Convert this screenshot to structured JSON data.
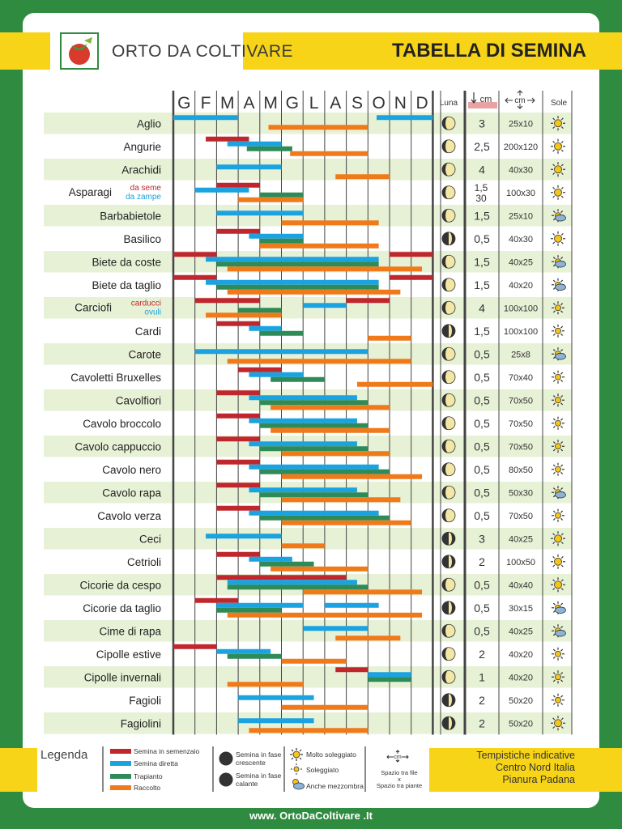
{
  "header": {
    "brand": "ORTO DA COLTIVARE",
    "title": "TABELLA DI SEMINA"
  },
  "columns": {
    "months": [
      "G",
      "F",
      "M",
      "A",
      "M",
      "G",
      "L",
      "A",
      "S",
      "O",
      "N",
      "D"
    ],
    "moon": "Luna",
    "depth": "cm",
    "spacing": "cm",
    "sun": "Sole"
  },
  "colors": {
    "semenzaio": "#c0272d",
    "diretta": "#1aa3e0",
    "trapianto": "#2e8b57",
    "raccolto": "#f07a1a"
  },
  "rows": [
    {
      "name": "Aglio",
      "moon": "calante",
      "depth": "3",
      "spacing": "25x10",
      "sun": "molto",
      "bars": [
        {
          "t": "diretta",
          "r": [
            [
              0,
              3
            ],
            [
              9.4,
              12
            ]
          ]
        }
      ],
      "bars2": [
        {
          "t": "raccolto",
          "r": [
            [
              4.4,
              9
            ]
          ]
        }
      ]
    },
    {
      "name": "Angurie",
      "moon": "calante",
      "depth": "2,5",
      "spacing": "200x120",
      "sun": "molto",
      "bars": [
        {
          "t": "semenzaio",
          "r": [
            [
              1.5,
              3.5
            ]
          ]
        },
        {
          "t": "diretta",
          "r": [
            [
              2.5,
              5
            ]
          ]
        },
        {
          "t": "trapianto",
          "r": [
            [
              3.4,
              5.5
            ]
          ]
        },
        {
          "t": "raccolto",
          "r": [
            [
              5.4,
              9
            ]
          ]
        }
      ]
    },
    {
      "name": "Arachidi",
      "moon": "calante",
      "depth": "4",
      "spacing": "40x30",
      "sun": "molto",
      "bars": [
        {
          "t": "diretta",
          "r": [
            [
              2,
              5
            ]
          ]
        },
        {
          "t": "raccolto",
          "r": [
            [
              7.5,
              10
            ]
          ]
        }
      ]
    },
    {
      "name": "Asparagi",
      "sub1": "da seme",
      "sub2": "da zampe",
      "moon": "calante",
      "depth": "1,5",
      "depth2": "30",
      "spacing": "100x30",
      "sun": "molto",
      "bars": [
        {
          "t": "semenzaio",
          "r": [
            [
              2,
              4
            ]
          ]
        },
        {
          "t": "diretta",
          "r": [
            [
              1,
              3.5
            ]
          ]
        },
        {
          "t": "trapianto",
          "r": [
            [
              4,
              6
            ]
          ]
        },
        {
          "t": "raccolto",
          "r": [
            [
              3,
              6
            ]
          ]
        }
      ]
    },
    {
      "name": "Barbabietole",
      "moon": "calante",
      "depth": "1,5",
      "spacing": "25x10",
      "sun": "mezzombra",
      "bars": [
        {
          "t": "diretta",
          "r": [
            [
              2,
              6
            ]
          ]
        },
        {
          "t": "raccolto",
          "r": [
            [
              5,
              9.5
            ]
          ]
        }
      ]
    },
    {
      "name": "Basilico",
      "moon": "crescente",
      "depth": "0,5",
      "spacing": "40x30",
      "sun": "molto",
      "bars": [
        {
          "t": "semenzaio",
          "r": [
            [
              2,
              4
            ]
          ]
        },
        {
          "t": "diretta",
          "r": [
            [
              3.5,
              6
            ]
          ]
        },
        {
          "t": "trapianto",
          "r": [
            [
              4,
              6
            ]
          ]
        },
        {
          "t": "raccolto",
          "r": [
            [
              4,
              9.5
            ]
          ]
        }
      ]
    },
    {
      "name": "Biete da coste",
      "moon": "calante",
      "depth": "1,5",
      "spacing": "40x25",
      "sun": "mezzombra",
      "bars": [
        {
          "t": "semenzaio",
          "r": [
            [
              0,
              2
            ],
            [
              10,
              12
            ]
          ]
        },
        {
          "t": "diretta",
          "r": [
            [
              1.5,
              9.5
            ]
          ]
        },
        {
          "t": "trapianto",
          "r": [
            [
              2,
              9.5
            ]
          ]
        },
        {
          "t": "raccolto",
          "r": [
            [
              2.5,
              11.5
            ]
          ]
        }
      ]
    },
    {
      "name": "Biete da taglio",
      "moon": "calante",
      "depth": "1,5",
      "spacing": "40x20",
      "sun": "mezzombra",
      "bars": [
        {
          "t": "semenzaio",
          "r": [
            [
              0,
              2
            ],
            [
              10,
              12
            ]
          ]
        },
        {
          "t": "diretta",
          "r": [
            [
              1.5,
              9.5
            ]
          ]
        },
        {
          "t": "trapianto",
          "r": [
            [
              2,
              9.5
            ]
          ]
        },
        {
          "t": "raccolto",
          "r": [
            [
              2.5,
              10.5
            ]
          ]
        }
      ]
    },
    {
      "name": "Carciofi",
      "sub1": "carducci",
      "sub2": "ovuli",
      "moon": "calante",
      "depth": "4",
      "spacing": "100x100",
      "sun": "sole",
      "bars": [
        {
          "t": "semenzaio",
          "r": [
            [
              1,
              4
            ],
            [
              8,
              10
            ]
          ]
        },
        {
          "t": "diretta",
          "r": [
            [
              6,
              8
            ]
          ]
        },
        {
          "t": "trapianto",
          "r": [
            [
              3,
              5
            ]
          ]
        },
        {
          "t": "raccolto",
          "r": [
            [
              1.5,
              5
            ]
          ]
        }
      ]
    },
    {
      "name": "Cardi",
      "moon": "crescente",
      "depth": "1,5",
      "spacing": "100x100",
      "sun": "sole",
      "bars": [
        {
          "t": "semenzaio",
          "r": [
            [
              2,
              4
            ]
          ]
        },
        {
          "t": "diretta",
          "r": [
            [
              3.5,
              5
            ]
          ]
        },
        {
          "t": "trapianto",
          "r": [
            [
              4,
              6
            ]
          ]
        },
        {
          "t": "raccolto",
          "r": [
            [
              9,
              11
            ]
          ]
        }
      ]
    },
    {
      "name": "Carote",
      "moon": "calante",
      "depth": "0,5",
      "spacing": "25x8",
      "sun": "mezzombra",
      "bars": [
        {
          "t": "diretta",
          "r": [
            [
              1,
              9
            ]
          ]
        },
        {
          "t": "raccolto",
          "r": [
            [
              2.5,
              11
            ]
          ]
        }
      ]
    },
    {
      "name": "Cavoletti Bruxelles",
      "moon": "calante",
      "depth": "0,5",
      "spacing": "70x40",
      "sun": "sole",
      "bars": [
        {
          "t": "semenzaio",
          "r": [
            [
              3,
              5
            ]
          ]
        },
        {
          "t": "diretta",
          "r": [
            [
              3.5,
              6
            ]
          ]
        },
        {
          "t": "trapianto",
          "r": [
            [
              4.5,
              7
            ]
          ]
        },
        {
          "t": "raccolto",
          "r": [
            [
              8.5,
              12
            ]
          ]
        }
      ]
    },
    {
      "name": "Cavolfiori",
      "moon": "calante",
      "depth": "0,5",
      "spacing": "70x50",
      "sun": "sole",
      "bars": [
        {
          "t": "semenzaio",
          "r": [
            [
              2,
              4
            ]
          ]
        },
        {
          "t": "diretta",
          "r": [
            [
              3.5,
              8.5
            ]
          ]
        },
        {
          "t": "trapianto",
          "r": [
            [
              4,
              9
            ]
          ]
        },
        {
          "t": "raccolto",
          "r": [
            [
              4.5,
              10
            ]
          ]
        }
      ]
    },
    {
      "name": "Cavolo broccolo",
      "moon": "calante",
      "depth": "0,5",
      "spacing": "70x50",
      "sun": "sole",
      "bars": [
        {
          "t": "semenzaio",
          "r": [
            [
              2,
              4
            ]
          ]
        },
        {
          "t": "diretta",
          "r": [
            [
              3.5,
              8.5
            ]
          ]
        },
        {
          "t": "trapianto",
          "r": [
            [
              4,
              9
            ]
          ]
        },
        {
          "t": "raccolto",
          "r": [
            [
              4.5,
              10
            ]
          ]
        }
      ]
    },
    {
      "name": "Cavolo cappuccio",
      "moon": "calante",
      "depth": "0,5",
      "spacing": "70x50",
      "sun": "sole",
      "bars": [
        {
          "t": "semenzaio",
          "r": [
            [
              2,
              4
            ]
          ]
        },
        {
          "t": "diretta",
          "r": [
            [
              3.5,
              8.5
            ]
          ]
        },
        {
          "t": "trapianto",
          "r": [
            [
              4,
              9
            ]
          ]
        },
        {
          "t": "raccolto",
          "r": [
            [
              5,
              10
            ]
          ]
        }
      ]
    },
    {
      "name": "Cavolo nero",
      "moon": "calante",
      "depth": "0,5",
      "spacing": "80x50",
      "sun": "sole",
      "bars": [
        {
          "t": "semenzaio",
          "r": [
            [
              2,
              4
            ]
          ]
        },
        {
          "t": "diretta",
          "r": [
            [
              3.5,
              9.5
            ]
          ]
        },
        {
          "t": "trapianto",
          "r": [
            [
              4,
              10
            ]
          ]
        },
        {
          "t": "raccolto",
          "r": [
            [
              5,
              11.5
            ]
          ]
        }
      ]
    },
    {
      "name": "Cavolo rapa",
      "moon": "calante",
      "depth": "0,5",
      "spacing": "50x30",
      "sun": "mezzombra",
      "bars": [
        {
          "t": "semenzaio",
          "r": [
            [
              2,
              4
            ]
          ]
        },
        {
          "t": "diretta",
          "r": [
            [
              3.5,
              8.5
            ]
          ]
        },
        {
          "t": "trapianto",
          "r": [
            [
              4,
              9
            ]
          ]
        },
        {
          "t": "raccolto",
          "r": [
            [
              5,
              10.5
            ]
          ]
        }
      ]
    },
    {
      "name": "Cavolo verza",
      "moon": "calante",
      "depth": "0,5",
      "spacing": "70x50",
      "sun": "sole",
      "bars": [
        {
          "t": "semenzaio",
          "r": [
            [
              2,
              4
            ]
          ]
        },
        {
          "t": "diretta",
          "r": [
            [
              3.5,
              9.5
            ]
          ]
        },
        {
          "t": "trapianto",
          "r": [
            [
              4,
              10
            ]
          ]
        },
        {
          "t": "raccolto",
          "r": [
            [
              5,
              11
            ]
          ]
        }
      ]
    },
    {
      "name": "Ceci",
      "moon": "crescente",
      "depth": "3",
      "spacing": "40x25",
      "sun": "molto",
      "bars": [
        {
          "t": "diretta",
          "r": [
            [
              1.5,
              5
            ]
          ]
        },
        {
          "t": "raccolto",
          "r": [
            [
              5,
              7
            ]
          ]
        }
      ]
    },
    {
      "name": "Cetrioli",
      "moon": "crescente",
      "depth": "2",
      "spacing": "100x50",
      "sun": "molto",
      "bars": [
        {
          "t": "semenzaio",
          "r": [
            [
              2,
              4
            ]
          ]
        },
        {
          "t": "diretta",
          "r": [
            [
              3.5,
              5.5
            ]
          ]
        },
        {
          "t": "trapianto",
          "r": [
            [
              4,
              6.5
            ]
          ]
        },
        {
          "t": "raccolto",
          "r": [
            [
              4.5,
              9
            ]
          ]
        }
      ]
    },
    {
      "name": "Cicorie da cespo",
      "moon": "calante",
      "depth": "0,5",
      "spacing": "40x40",
      "sun": "molto",
      "bars": [
        {
          "t": "semenzaio",
          "r": [
            [
              2,
              8
            ]
          ]
        },
        {
          "t": "diretta",
          "r": [
            [
              2.5,
              8.5
            ]
          ]
        },
        {
          "t": "trapianto",
          "r": [
            [
              2.5,
              9
            ]
          ]
        },
        {
          "t": "raccolto",
          "r": [
            [
              6,
              11.5
            ]
          ]
        }
      ]
    },
    {
      "name": "Cicorie da taglio",
      "moon": "crescente",
      "depth": "0,5",
      "spacing": "30x15",
      "sun": "mezzombra",
      "bars": [
        {
          "t": "semenzaio",
          "r": [
            [
              1,
              3
            ]
          ]
        },
        {
          "t": "diretta",
          "r": [
            [
              2,
              6
            ],
            [
              7,
              9.5
            ]
          ]
        },
        {
          "t": "trapianto",
          "r": [
            [
              2,
              5
            ]
          ]
        },
        {
          "t": "raccolto",
          "r": [
            [
              2.5,
              11.5
            ]
          ]
        }
      ]
    },
    {
      "name": "Cime di rapa",
      "moon": "calante",
      "depth": "0,5",
      "spacing": "40x25",
      "sun": "mezzombra",
      "bars": [
        {
          "t": "diretta",
          "r": [
            [
              6,
              9
            ]
          ]
        },
        {
          "t": "raccolto",
          "r": [
            [
              7.5,
              10.5
            ]
          ]
        }
      ]
    },
    {
      "name": "Cipolle estive",
      "moon": "calante",
      "depth": "2",
      "spacing": "40x20",
      "sun": "sole",
      "bars": [
        {
          "t": "semenzaio",
          "r": [
            [
              0,
              2
            ]
          ]
        },
        {
          "t": "diretta",
          "r": [
            [
              2,
              4.5
            ]
          ]
        },
        {
          "t": "trapianto",
          "r": [
            [
              2.5,
              5
            ]
          ]
        },
        {
          "t": "raccolto",
          "r": [
            [
              5,
              8
            ]
          ]
        }
      ]
    },
    {
      "name": "Cipolle invernali",
      "moon": "calante",
      "depth": "1",
      "spacing": "40x20",
      "sun": "sole",
      "bars": [
        {
          "t": "semenzaio",
          "r": [
            [
              7.5,
              9
            ]
          ]
        },
        {
          "t": "diretta",
          "r": [
            [
              9,
              11
            ]
          ]
        },
        {
          "t": "trapianto",
          "r": [
            [
              9,
              11
            ]
          ]
        },
        {
          "t": "raccolto",
          "r": [
            [
              2.5,
              6
            ]
          ]
        }
      ]
    },
    {
      "name": "Fagioli",
      "moon": "crescente",
      "depth": "2",
      "spacing": "50x20",
      "sun": "sole",
      "bars": [
        {
          "t": "diretta",
          "r": [
            [
              3,
              6.5
            ]
          ]
        },
        {
          "t": "raccolto",
          "r": [
            [
              5,
              9
            ]
          ]
        }
      ]
    },
    {
      "name": "Fagiolini",
      "moon": "crescente",
      "depth": "2",
      "spacing": "50x20",
      "sun": "molto",
      "bars": [
        {
          "t": "diretta",
          "r": [
            [
              3,
              6.5
            ]
          ]
        },
        {
          "t": "raccolto",
          "r": [
            [
              3.5,
              9
            ]
          ]
        }
      ]
    }
  ],
  "legend": {
    "title": "Legenda",
    "semenzaio": "Semina in semenzaio",
    "diretta": "Semina diretta",
    "trapianto": "Trapianto",
    "raccolto": "Raccolto",
    "moon_cresc": "Semina in fase crescente",
    "moon_cal": "Semina in fase calante",
    "molto": "Molto soleggiato",
    "sole": "Soleggiato",
    "mezzombra": "Anche mezzombra",
    "spacing1": "Spazio tra file",
    "spacing2": "x",
    "spacing3": "Spazio tra piante"
  },
  "info": {
    "line1": "Tempistiche indicative",
    "line2": "Centro Nord Italia",
    "line3": "Pianura Padana"
  },
  "footer": "www. OrtoDaColtivare .It"
}
